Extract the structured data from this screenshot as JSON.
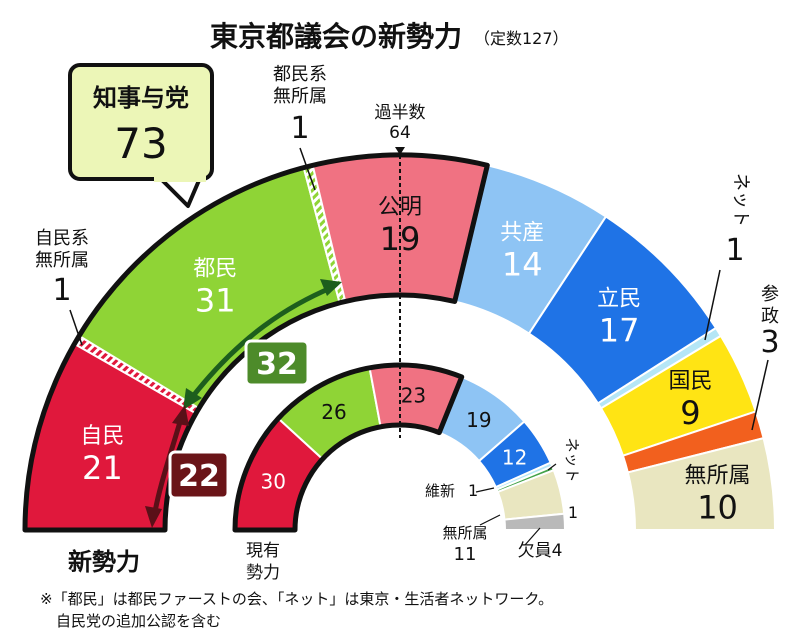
{
  "title": "東京都議会の新勢力",
  "subtitle": "（定数127）",
  "footnote_1": "※「都民」は都民ファーストの会、「ネット」は東京・生活者ネットワーク。",
  "footnote_2": "自民党の追加公認を含む",
  "ring_labels": {
    "outer": "新勢力",
    "inner_line1": "現有",
    "inner_line2": "勢力"
  },
  "majority": {
    "label": "過半数",
    "value": "64"
  },
  "callout": {
    "label": "知事与党",
    "value": "73"
  },
  "tag_32": "32",
  "tag_22": "22",
  "colors": {
    "ldp": "#e0183c",
    "tomin": "#8fd436",
    "komei": "#f07282",
    "jcp": "#8ec4f4",
    "cdp": "#1f73e6",
    "net": "#b5e6f6",
    "dpfp": "#ffe414",
    "sansei": "#f2601e",
    "ind": "#e9e6c0",
    "ishin": "#44a34a",
    "vacant": "#b9b9b9"
  },
  "chart_data": {
    "type": "pie",
    "title": "東京都議会の新勢力",
    "total_seats": 127,
    "new_strength": [
      {
        "party": "自民",
        "seats": 21,
        "color": "#e0183c"
      },
      {
        "party": "自民系無所属",
        "seats": 1,
        "color": "#e0183c",
        "hatched": true
      },
      {
        "party": "都民",
        "seats": 31,
        "color": "#8fd436"
      },
      {
        "party": "都民系無所属",
        "seats": 1,
        "color": "#8fd436",
        "hatched": true
      },
      {
        "party": "公明",
        "seats": 19,
        "color": "#f07282"
      },
      {
        "party": "共産",
        "seats": 14,
        "color": "#8ec4f4"
      },
      {
        "party": "立民",
        "seats": 17,
        "color": "#1f73e6"
      },
      {
        "party": "ネット",
        "seats": 1,
        "color": "#b5e6f6"
      },
      {
        "party": "国民",
        "seats": 9,
        "color": "#ffe414"
      },
      {
        "party": "参政",
        "seats": 3,
        "color": "#f2601e"
      },
      {
        "party": "無所属",
        "seats": 10,
        "color": "#e9e6c0"
      }
    ],
    "current_strength": [
      {
        "party": "自民",
        "seats": 30,
        "color": "#e0183c"
      },
      {
        "party": "都民",
        "seats": 26,
        "color": "#8fd436"
      },
      {
        "party": "公明",
        "seats": 23,
        "color": "#f07282"
      },
      {
        "party": "共産",
        "seats": 19,
        "color": "#8ec4f4"
      },
      {
        "party": "立民",
        "seats": 12,
        "color": "#1f73e6"
      },
      {
        "party": "ネット",
        "seats": 1,
        "color": "#b5e6f6"
      },
      {
        "party": "維新",
        "seats": 1,
        "color": "#44a34a"
      },
      {
        "party": "無所属",
        "seats": 11,
        "color": "#e9e6c0"
      },
      {
        "party": "欠員",
        "seats": 4,
        "color": "#b9b9b9"
      }
    ],
    "ruling_bloc_seats": 73,
    "majority_line": 64
  }
}
